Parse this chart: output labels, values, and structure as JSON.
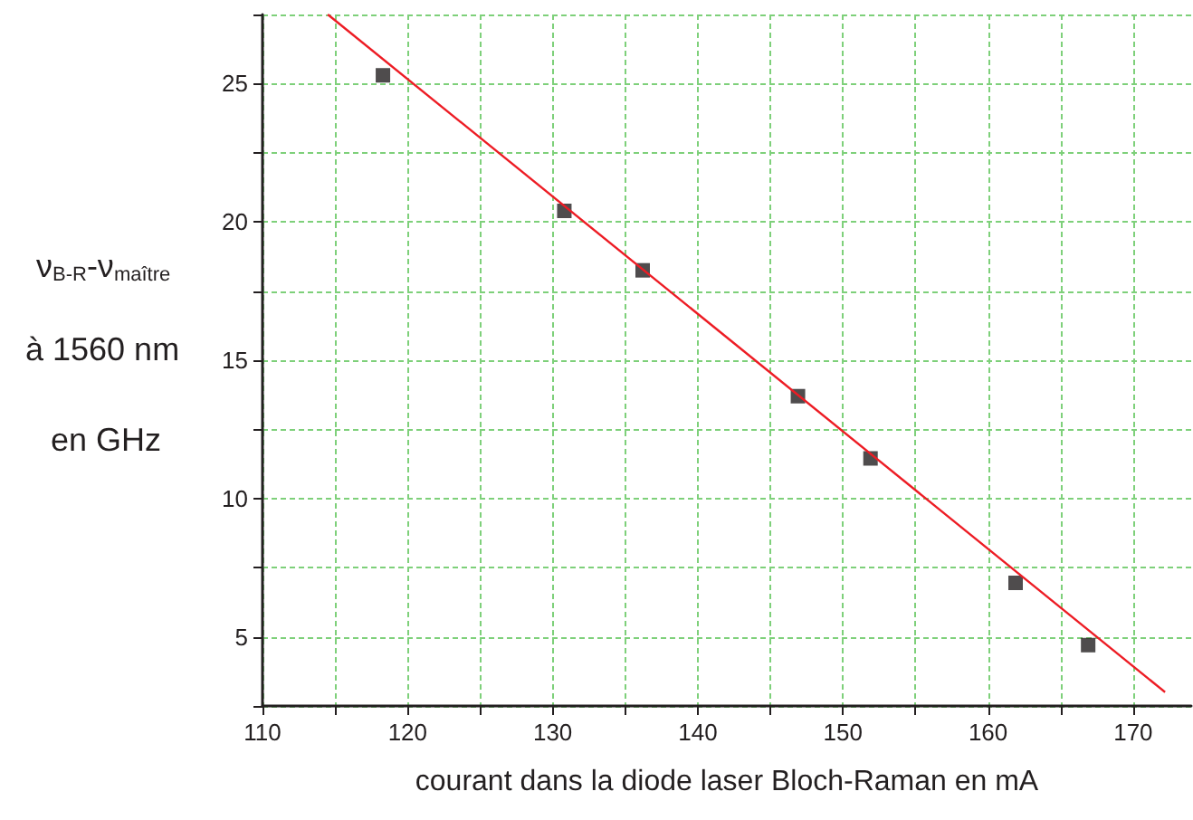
{
  "chart_data": {
    "type": "scatter",
    "xlabel": "courant dans la diode laser Bloch-Raman en mA",
    "ylabel": "ν$_{B-R}$-ν$_{maître}$\nà 1560 nm\nen GHz",
    "xlim": [
      110,
      174
    ],
    "xticks": [
      110,
      {
        "value": 115,
        "label": null
      },
      120,
      {
        "value": 125,
        "label": null
      },
      130,
      {
        "value": 135,
        "label": null
      },
      140,
      {
        "value": 145,
        "label": null
      },
      150,
      {
        "value": 155,
        "label": null
      },
      160,
      {
        "value": 165,
        "label": null
      },
      170
    ],
    "ylim": [
      2.5,
      27.5
    ],
    "yticks": [
      {
        "value": 2.5,
        "label": null
      },
      5,
      {
        "value": 7.5,
        "label": null
      },
      10,
      {
        "value": 12.5,
        "label": null
      },
      15,
      {
        "value": 17.5,
        "label": null
      },
      20,
      {
        "value": 22.5,
        "label": null
      },
      25,
      {
        "value": 27.5,
        "label": null
      }
    ],
    "grid": true,
    "marker": "square",
    "series": [
      {
        "color": "#231f20",
        "x": [
          118.3,
          130.8,
          136.2,
          146.9,
          151.9,
          161.9,
          166.9
        ],
        "values": [
          25.3,
          20.4,
          18.25,
          13.7,
          11.45,
          6.95,
          4.7
        ]
      },
      {
        "type": "line",
        "color": "#ed1c24",
        "marker": "none",
        "line_style": "solid",
        "x": [
          114.5,
          172.2
        ],
        "values": [
          27.5,
          3.0
        ]
      }
    ]
  }
}
